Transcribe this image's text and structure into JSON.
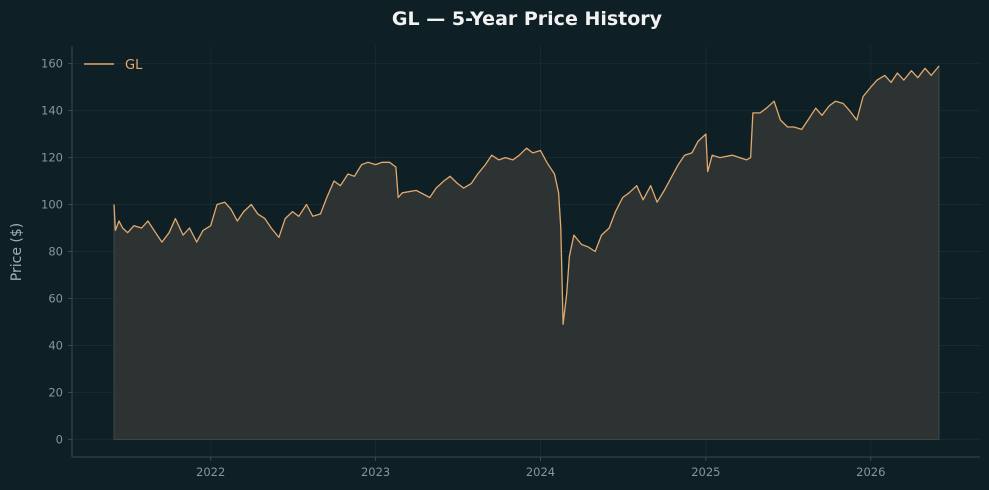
{
  "chart_data": {
    "type": "area",
    "title": "GL — 5-Year Price History",
    "xlabel": "",
    "ylabel": "Price ($)",
    "x_range": [
      "2021-06-01",
      "2026-06-01"
    ],
    "ylim": [
      -7.5,
      167.5
    ],
    "y_ticks": [
      0,
      20,
      40,
      60,
      80,
      100,
      120,
      140,
      160
    ],
    "x_ticks": [
      "2022",
      "2023",
      "2024",
      "2025",
      "2026"
    ],
    "x_tick_dates": [
      "2022-01-01",
      "2023-01-01",
      "2024-01-01",
      "2025-01-01",
      "2026-01-01"
    ],
    "grid": true,
    "legend_position": "top-left",
    "colors": {
      "background": "#0f1f26",
      "line": "#e0a96d",
      "fill": "#2d3232",
      "axis": "#3a4a50",
      "grid": "#182b31",
      "tick_text": "#8a9499",
      "title_text": "#f2f2f2"
    },
    "series": [
      {
        "name": "GL",
        "points": [
          [
            "2021-06-01",
            100
          ],
          [
            "2021-06-04",
            89
          ],
          [
            "2021-06-12",
            93
          ],
          [
            "2021-06-20",
            90
          ],
          [
            "2021-07-01",
            88
          ],
          [
            "2021-07-15",
            91
          ],
          [
            "2021-08-01",
            90
          ],
          [
            "2021-08-15",
            93
          ],
          [
            "2021-09-01",
            88
          ],
          [
            "2021-09-15",
            84
          ],
          [
            "2021-10-01",
            88
          ],
          [
            "2021-10-15",
            94
          ],
          [
            "2021-11-01",
            87
          ],
          [
            "2021-11-15",
            90
          ],
          [
            "2021-12-01",
            84
          ],
          [
            "2021-12-15",
            89
          ],
          [
            "2022-01-01",
            91
          ],
          [
            "2022-01-15",
            100
          ],
          [
            "2022-02-01",
            101
          ],
          [
            "2022-02-15",
            98
          ],
          [
            "2022-03-01",
            93
          ],
          [
            "2022-03-15",
            97
          ],
          [
            "2022-04-01",
            100
          ],
          [
            "2022-04-15",
            96
          ],
          [
            "2022-05-01",
            94
          ],
          [
            "2022-05-15",
            90
          ],
          [
            "2022-06-01",
            86
          ],
          [
            "2022-06-15",
            94
          ],
          [
            "2022-07-01",
            97
          ],
          [
            "2022-07-15",
            95
          ],
          [
            "2022-08-01",
            100
          ],
          [
            "2022-08-15",
            95
          ],
          [
            "2022-09-01",
            96
          ],
          [
            "2022-09-15",
            103
          ],
          [
            "2022-10-01",
            110
          ],
          [
            "2022-10-15",
            108
          ],
          [
            "2022-11-01",
            113
          ],
          [
            "2022-11-15",
            112
          ],
          [
            "2022-12-01",
            117
          ],
          [
            "2022-12-15",
            118
          ],
          [
            "2023-01-01",
            117
          ],
          [
            "2023-01-15",
            118
          ],
          [
            "2023-02-01",
            118
          ],
          [
            "2023-02-15",
            116
          ],
          [
            "2023-02-20",
            103
          ],
          [
            "2023-03-01",
            105
          ],
          [
            "2023-04-01",
            106
          ],
          [
            "2023-05-01",
            103
          ],
          [
            "2023-05-15",
            107
          ],
          [
            "2023-06-01",
            110
          ],
          [
            "2023-06-15",
            112
          ],
          [
            "2023-07-01",
            109
          ],
          [
            "2023-07-15",
            107
          ],
          [
            "2023-08-01",
            109
          ],
          [
            "2023-08-15",
            113
          ],
          [
            "2023-09-01",
            117
          ],
          [
            "2023-09-15",
            121
          ],
          [
            "2023-10-01",
            119
          ],
          [
            "2023-10-15",
            120
          ],
          [
            "2023-11-01",
            119
          ],
          [
            "2023-11-15",
            121
          ],
          [
            "2023-12-01",
            124
          ],
          [
            "2023-12-15",
            122
          ],
          [
            "2024-01-01",
            123
          ],
          [
            "2024-01-15",
            118
          ],
          [
            "2024-02-01",
            113
          ],
          [
            "2024-02-10",
            105
          ],
          [
            "2024-02-15",
            90
          ],
          [
            "2024-02-20",
            49
          ],
          [
            "2024-02-28",
            62
          ],
          [
            "2024-03-05",
            78
          ],
          [
            "2024-03-15",
            87
          ],
          [
            "2024-04-01",
            83
          ],
          [
            "2024-04-15",
            82
          ],
          [
            "2024-05-01",
            80
          ],
          [
            "2024-05-15",
            87
          ],
          [
            "2024-06-01",
            90
          ],
          [
            "2024-06-15",
            97
          ],
          [
            "2024-07-01",
            103
          ],
          [
            "2024-07-15",
            105
          ],
          [
            "2024-08-01",
            108
          ],
          [
            "2024-08-15",
            102
          ],
          [
            "2024-09-01",
            108
          ],
          [
            "2024-09-15",
            101
          ],
          [
            "2024-10-01",
            106
          ],
          [
            "2024-10-15",
            111
          ],
          [
            "2024-11-01",
            117
          ],
          [
            "2024-11-15",
            121
          ],
          [
            "2024-12-01",
            122
          ],
          [
            "2024-12-15",
            127
          ],
          [
            "2025-01-01",
            130
          ],
          [
            "2025-01-05",
            114
          ],
          [
            "2025-01-15",
            121
          ],
          [
            "2025-02-01",
            120
          ],
          [
            "2025-03-01",
            121
          ],
          [
            "2025-04-01",
            119
          ],
          [
            "2025-04-10",
            120
          ],
          [
            "2025-04-15",
            139
          ],
          [
            "2025-05-01",
            139
          ],
          [
            "2025-05-15",
            141
          ],
          [
            "2025-06-01",
            144
          ],
          [
            "2025-06-15",
            136
          ],
          [
            "2025-07-01",
            133
          ],
          [
            "2025-07-15",
            133
          ],
          [
            "2025-08-01",
            132
          ],
          [
            "2025-08-15",
            136
          ],
          [
            "2025-09-01",
            141
          ],
          [
            "2025-09-15",
            138
          ],
          [
            "2025-10-01",
            142
          ],
          [
            "2025-10-15",
            144
          ],
          [
            "2025-11-01",
            143
          ],
          [
            "2025-11-15",
            140
          ],
          [
            "2025-12-01",
            136
          ],
          [
            "2025-12-15",
            146
          ],
          [
            "2026-01-01",
            150
          ],
          [
            "2026-01-15",
            153
          ],
          [
            "2026-02-01",
            155
          ],
          [
            "2026-02-15",
            152
          ],
          [
            "2026-03-01",
            156
          ],
          [
            "2026-03-15",
            153
          ],
          [
            "2026-04-01",
            157
          ],
          [
            "2026-04-15",
            154
          ],
          [
            "2026-05-01",
            158
          ],
          [
            "2026-05-15",
            155
          ],
          [
            "2026-06-01",
            159
          ]
        ]
      }
    ]
  }
}
